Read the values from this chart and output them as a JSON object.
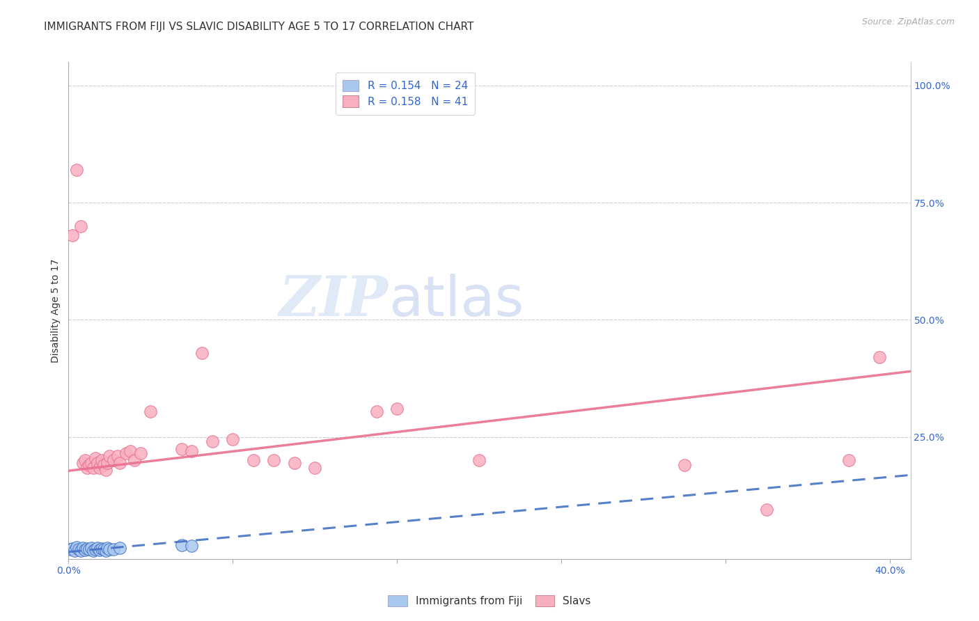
{
  "title": "IMMIGRANTS FROM FIJI VS SLAVIC DISABILITY AGE 5 TO 17 CORRELATION CHART",
  "source": "Source: ZipAtlas.com",
  "ylabel": "Disability Age 5 to 17",
  "xlim": [
    0.0,
    0.41
  ],
  "ylim": [
    -0.01,
    1.05
  ],
  "xtick_positions": [
    0.0,
    0.08,
    0.16,
    0.24,
    0.32,
    0.4
  ],
  "xticklabels": [
    "0.0%",
    "",
    "",
    "",
    "",
    "40.0%"
  ],
  "ytick_positions": [
    0.0,
    0.25,
    0.5,
    0.75,
    1.0
  ],
  "yticklabels_right": [
    "",
    "25.0%",
    "50.0%",
    "75.0%",
    "100.0%"
  ],
  "background_color": "#ffffff",
  "fiji_x": [
    0.001,
    0.002,
    0.003,
    0.004,
    0.005,
    0.006,
    0.007,
    0.008,
    0.009,
    0.01,
    0.011,
    0.012,
    0.013,
    0.014,
    0.015,
    0.016,
    0.017,
    0.018,
    0.019,
    0.02,
    0.022,
    0.025,
    0.055,
    0.06
  ],
  "fiji_y": [
    0.01,
    0.012,
    0.008,
    0.015,
    0.011,
    0.007,
    0.013,
    0.009,
    0.012,
    0.01,
    0.014,
    0.008,
    0.011,
    0.013,
    0.009,
    0.012,
    0.01,
    0.007,
    0.014,
    0.011,
    0.01,
    0.013,
    0.02,
    0.018
  ],
  "slavic_x": [
    0.002,
    0.004,
    0.006,
    0.007,
    0.008,
    0.009,
    0.01,
    0.011,
    0.012,
    0.013,
    0.014,
    0.015,
    0.016,
    0.017,
    0.018,
    0.019,
    0.02,
    0.022,
    0.024,
    0.025,
    0.028,
    0.03,
    0.032,
    0.035,
    0.04,
    0.055,
    0.06,
    0.065,
    0.07,
    0.08,
    0.09,
    0.1,
    0.11,
    0.12,
    0.15,
    0.16,
    0.2,
    0.3,
    0.34,
    0.38,
    0.395
  ],
  "slavic_y": [
    0.68,
    0.82,
    0.7,
    0.195,
    0.2,
    0.185,
    0.19,
    0.195,
    0.185,
    0.205,
    0.195,
    0.185,
    0.2,
    0.19,
    0.18,
    0.195,
    0.21,
    0.2,
    0.21,
    0.195,
    0.215,
    0.22,
    0.2,
    0.215,
    0.305,
    0.225,
    0.22,
    0.43,
    0.24,
    0.245,
    0.2,
    0.2,
    0.195,
    0.185,
    0.305,
    0.31,
    0.2,
    0.19,
    0.095,
    0.2,
    0.42
  ],
  "fiji_color": "#a8c8f0",
  "slavic_color": "#f8b0c0",
  "fiji_line_color": "#4472c4",
  "slavic_line_color": "#e87090",
  "fiji_R": 0.154,
  "fiji_N": 24,
  "slavic_R": 0.158,
  "slavic_N": 41,
  "legend_fiji_label": "Immigrants from Fiji",
  "legend_slavic_label": "Slavs",
  "watermark_zip": "ZIP",
  "watermark_atlas": "atlas",
  "title_fontsize": 11,
  "axis_label_fontsize": 10,
  "tick_fontsize": 10,
  "legend_fontsize": 11,
  "source_fontsize": 9
}
